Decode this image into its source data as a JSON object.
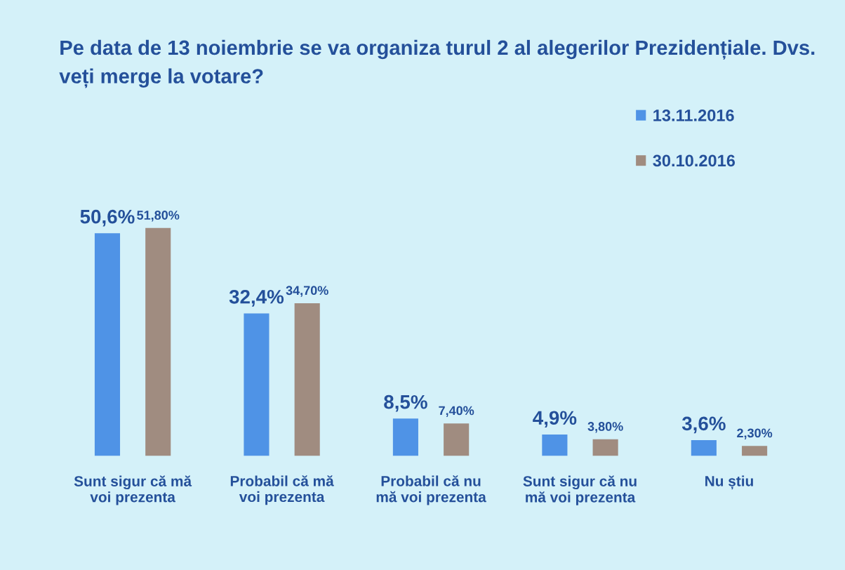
{
  "chart_data": {
    "type": "bar",
    "title": "Pe data de 13 noiembrie se va organiza turul 2 al alegerilor Prezidențiale. Dvs. veți merge la votare?",
    "categories": [
      "Sunt sigur că mă\nvoi prezenta",
      "Probabil că mă\nvoi prezenta",
      "Probabil că nu\nmă voi prezenta",
      "Sunt sigur că nu\nmă voi prezenta",
      "Nu știu"
    ],
    "series": [
      {
        "name": "13.11.2016",
        "color": "#4f93e6",
        "values": [
          50.6,
          32.4,
          8.5,
          4.9,
          3.6
        ],
        "value_labels": [
          "50,6%",
          "32,4%",
          "8,5%",
          "4,9%",
          "3,6%"
        ]
      },
      {
        "name": "30.10.2016",
        "color": "#a08c80",
        "values": [
          51.8,
          34.7,
          7.4,
          3.8,
          2.3
        ],
        "value_labels": [
          "51,80%",
          "34,70%",
          "7,40%",
          "3,80%",
          "2,30%"
        ]
      }
    ],
    "legend": "top right",
    "tick_labels": "x",
    "grid": false
  }
}
